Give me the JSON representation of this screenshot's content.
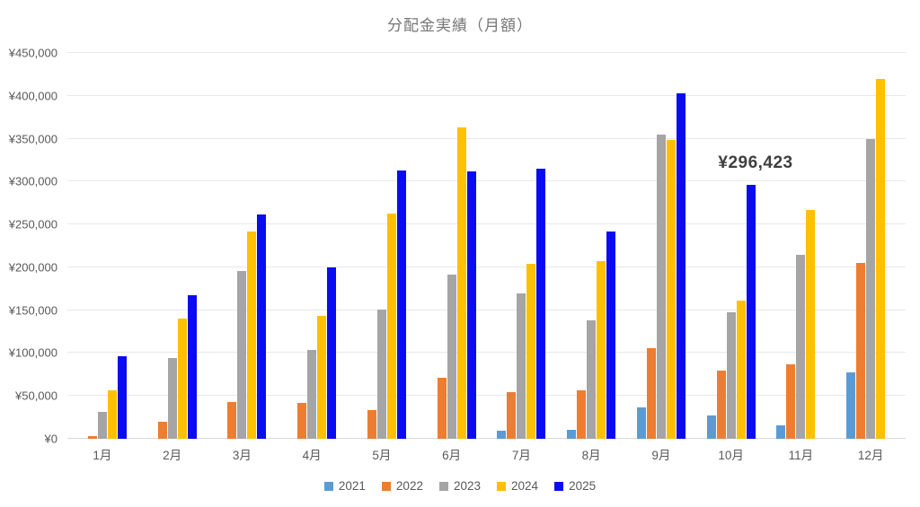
{
  "title": "分配金実績（月額）",
  "annotation": {
    "text": "¥296,423",
    "series": "2025",
    "category": "10月"
  },
  "colors": {
    "background": "#ffffff",
    "title_text": "#767676",
    "axis_text": "#595959",
    "gridline": "#e8e8e6",
    "annotation_text": "#3f3f3f"
  },
  "chart_data": {
    "type": "bar",
    "title": "分配金実績（月額）",
    "xlabel": "",
    "ylabel": "",
    "ylim": [
      0,
      450000
    ],
    "ytick_step": 50000,
    "ytick_labels": [
      "¥0",
      "¥50,000",
      "¥100,000",
      "¥150,000",
      "¥200,000",
      "¥250,000",
      "¥300,000",
      "¥350,000",
      "¥400,000",
      "¥450,000"
    ],
    "grid": "horizontal",
    "legend_position": "bottom",
    "categories": [
      "1月",
      "2月",
      "3月",
      "4月",
      "5月",
      "6月",
      "7月",
      "8月",
      "9月",
      "10月",
      "11月",
      "12月"
    ],
    "series": [
      {
        "name": "2021",
        "color": "#5B9BD5",
        "values": [
          null,
          null,
          null,
          null,
          null,
          null,
          9000,
          11000,
          37000,
          27000,
          16000,
          77000
        ]
      },
      {
        "name": "2022",
        "color": "#ED7D31",
        "values": [
          3000,
          20000,
          43000,
          42000,
          33000,
          71000,
          54000,
          57000,
          106000,
          80000,
          87000,
          205000
        ]
      },
      {
        "name": "2023",
        "color": "#A5A5A5",
        "values": [
          31000,
          94000,
          196000,
          104000,
          151000,
          192000,
          170000,
          138000,
          355000,
          148000,
          215000,
          350000
        ]
      },
      {
        "name": "2024",
        "color": "#FFC000",
        "values": [
          57000,
          140000,
          242000,
          143000,
          263000,
          363000,
          204000,
          207000,
          348000,
          161000,
          267000,
          420000
        ]
      },
      {
        "name": "2025",
        "color": "#0B0BF2",
        "values": [
          96000,
          167000,
          262000,
          200000,
          313000,
          312000,
          315000,
          242000,
          403000,
          296423,
          null,
          null
        ]
      }
    ],
    "annotation": {
      "text": "¥296,423",
      "series": "2025",
      "category": "10月"
    }
  }
}
